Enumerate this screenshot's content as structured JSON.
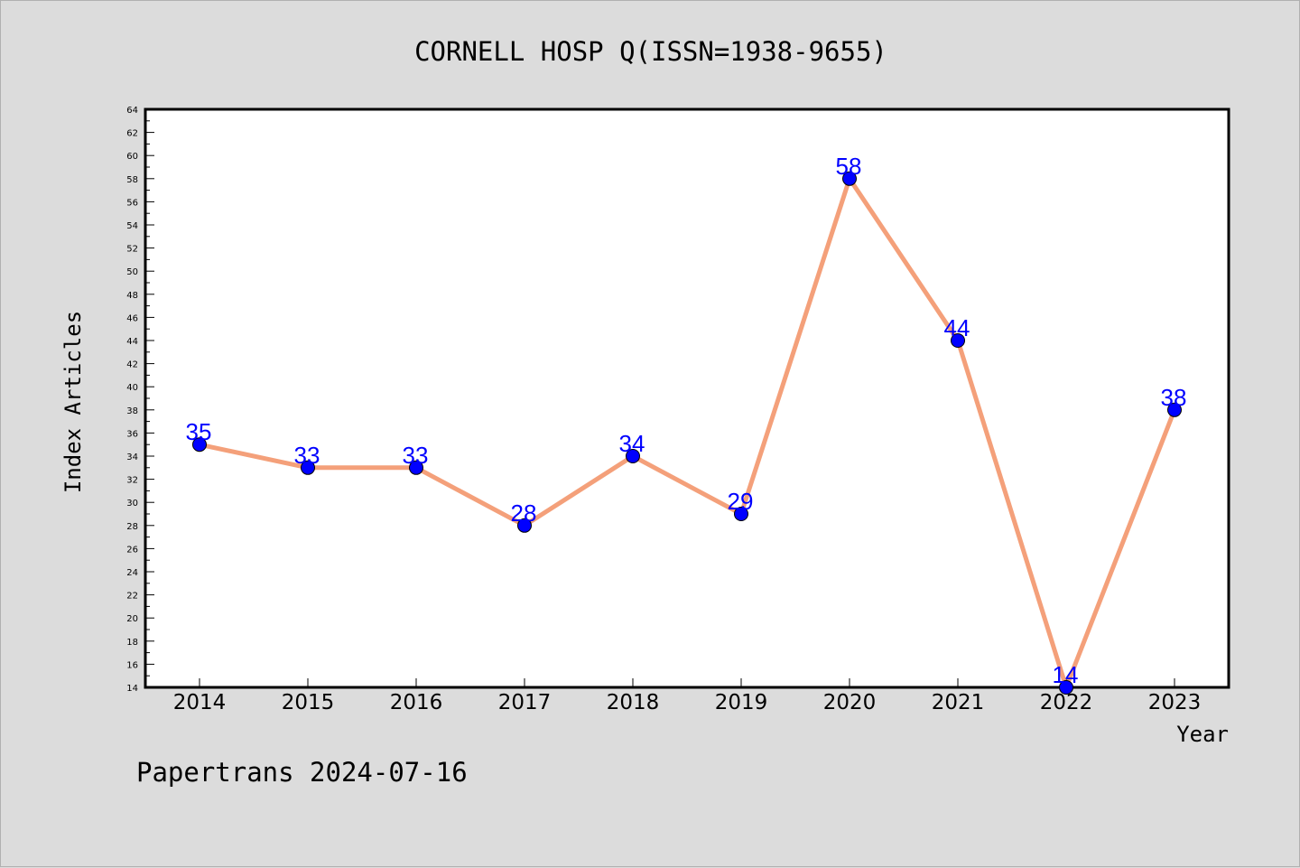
{
  "chart_data": {
    "type": "line",
    "title": "CORNELL HOSP Q(ISSN=1938-9655)",
    "xlabel": "Year",
    "ylabel": "Index Articles",
    "x": [
      "2014",
      "2015",
      "2016",
      "2017",
      "2018",
      "2019",
      "2020",
      "2021",
      "2022",
      "2023"
    ],
    "series": [
      {
        "values": [
          35,
          33,
          33,
          28,
          34,
          29,
          58,
          44,
          14,
          38
        ],
        "line_color": "#f4a07a",
        "marker_color": "#0000ff"
      }
    ],
    "ylim": [
      14,
      64
    ],
    "yticks": [
      "14",
      "16",
      "18",
      "20",
      "22",
      "24",
      "26",
      "28",
      "30",
      "32",
      "34",
      "36",
      "38",
      "40",
      "42",
      "44",
      "46",
      "48",
      "50",
      "52",
      "54",
      "56",
      "58",
      "60",
      "62",
      "64"
    ],
    "data_labels": [
      "35",
      "33",
      "33",
      "28",
      "34",
      "29",
      "58",
      "44",
      "14",
      "38"
    ],
    "grid": false,
    "legend": "none"
  },
  "footer": "Papertrans 2024-07-16",
  "colors": {
    "background": "#dcdcdc",
    "plot_background": "#ffffff",
    "line": "#f4a07a",
    "marker": "#0000ff",
    "label": "#0000ff"
  }
}
